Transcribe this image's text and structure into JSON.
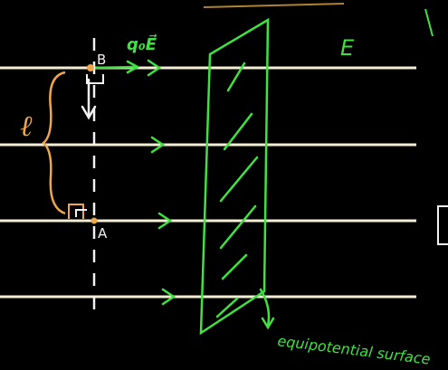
{
  "labels": {
    "point_b": "B",
    "point_a": "A",
    "force": "q₀E⃗",
    "field": "E",
    "distance": "ℓ",
    "surface": "equipotential surface"
  },
  "colors": {
    "background": "#000000",
    "field_line": "#f3edd4",
    "chalk_green": "#3fe23f",
    "chalk_white": "#f2f2f2",
    "chalk_orange": "#f0a64a"
  }
}
